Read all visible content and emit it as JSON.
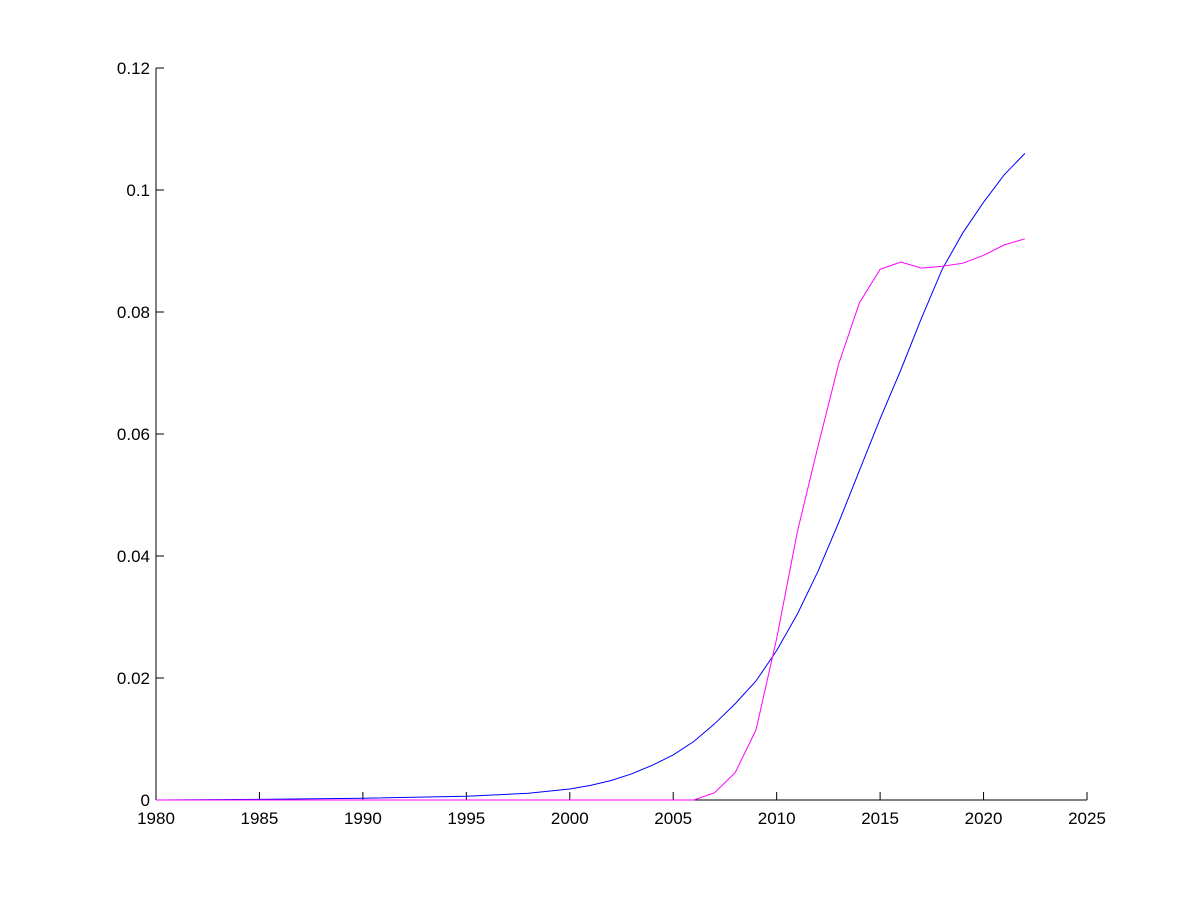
{
  "chart_data": {
    "type": "line",
    "title": "",
    "xlabel": "",
    "ylabel": "",
    "xlim": [
      1980,
      2025
    ],
    "ylim": [
      0,
      0.12
    ],
    "grid": false,
    "legend": "none",
    "xticks": [
      "1980",
      "1985",
      "1990",
      "1995",
      "2000",
      "2005",
      "2010",
      "2015",
      "2020",
      "2025"
    ],
    "yticks": [
      "0",
      "0.02",
      "0.04",
      "0.06",
      "0.08",
      "0.1",
      "0.12"
    ],
    "series": [
      {
        "color": "#0000ff",
        "x": [
          1980,
          1985,
          1990,
          1995,
          1998,
          2000,
          2001,
          2002,
          2003,
          2004,
          2005,
          2006,
          2007,
          2008,
          2009,
          2010,
          2011,
          2012,
          2013,
          2014,
          2015,
          2016,
          2017,
          2018,
          2019,
          2020,
          2021,
          2022
        ],
        "y": [
          0,
          0.0001,
          0.0003,
          0.0006,
          0.0011,
          0.0018,
          0.0024,
          0.0032,
          0.0043,
          0.0057,
          0.0074,
          0.0096,
          0.0125,
          0.0158,
          0.0195,
          0.0245,
          0.0305,
          0.0375,
          0.0455,
          0.054,
          0.0625,
          0.0705,
          0.079,
          0.087,
          0.093,
          0.098,
          0.1025,
          0.106
        ]
      },
      {
        "color": "#ff00ff",
        "x": [
          1980,
          2006,
          2007,
          2008,
          2009,
          2010,
          2011,
          2012,
          2013,
          2014,
          2015,
          2016,
          2017,
          2018,
          2019,
          2020,
          2021,
          2022
        ],
        "y": [
          0,
          0,
          0.0012,
          0.0045,
          0.0115,
          0.0265,
          0.044,
          0.058,
          0.0715,
          0.0815,
          0.087,
          0.0882,
          0.0872,
          0.0875,
          0.088,
          0.0893,
          0.091,
          0.092
        ]
      }
    ]
  }
}
